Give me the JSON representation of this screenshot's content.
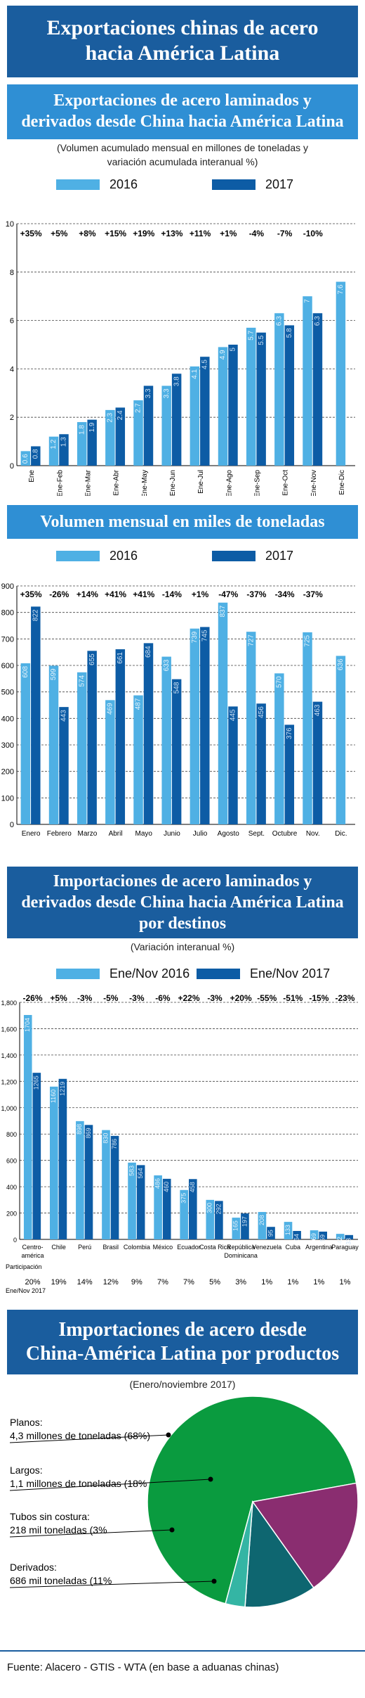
{
  "header": {
    "title_line1": "Exportaciones chinas de acero",
    "title_line2": "hacia América Latina"
  },
  "colors": {
    "c2016": "#4fb0e4",
    "c2017": "#0d5ca5",
    "grid": "#444444"
  },
  "section1": {
    "title_line1": "Exportaciones  de acero laminados y",
    "title_line2": "derivados desde China hacia América Latina",
    "subtitle_line1": "(Volumen acumulado mensual en millones de toneladas y",
    "subtitle_line2": "variación acumulada interanual %)",
    "legend_a": "2016",
    "legend_b": "2017"
  },
  "section2": {
    "title": "Volumen  mensual en miles de toneladas",
    "legend_a": "2016",
    "legend_b": "2017"
  },
  "section3": {
    "title_line1": "Importaciones  de acero laminados y",
    "title_line2": "derivados desde China hacia América Latina",
    "title_line3": "por destinos",
    "subtitle": "(Variación  interanual %)",
    "legend_a": "Ene/Nov 2016",
    "legend_b": "Ene/Nov 2017"
  },
  "section4": {
    "title_line1": "Importaciones  de acero desde",
    "title_line2": "China-América Latina por productos",
    "subtitle": "(Enero/noviembre 2017)"
  },
  "source": "Fuente: Alacero - GTIS - WTA (en base a aduanas chinas)",
  "chart_data": [
    {
      "type": "bar",
      "categories": [
        "Ene",
        "Ene-Feb",
        "Ene-Mar",
        "Ene-Abr",
        "Ene-May",
        "Ene-Jun",
        "Ene-Jul",
        "Ene-Ago",
        "Ene-Sep",
        "Ene-Oct",
        "Ene-Nov",
        "Ene-Dic"
      ],
      "series": [
        {
          "name": "2016",
          "values": [
            0.6,
            1.2,
            1.8,
            2.3,
            2.7,
            3.3,
            4.1,
            4.9,
            5.7,
            6.3,
            7.0,
            7.6
          ]
        },
        {
          "name": "2017",
          "values": [
            0.8,
            1.3,
            1.9,
            2.4,
            3.3,
            3.8,
            4.5,
            5.0,
            5.5,
            5.8,
            6.3,
            null
          ]
        }
      ],
      "annotations": [
        "+35%",
        "+5%",
        "+8%",
        "+15%",
        "+19%",
        "+13%",
        "+11%",
        "+1%",
        "-4%",
        "-7%",
        "-10%",
        ""
      ],
      "yticks": [
        "0",
        "2",
        "4",
        "6",
        "8",
        "10"
      ],
      "ylim": [
        0,
        10
      ],
      "grid": true
    },
    {
      "type": "bar",
      "categories": [
        "Enero",
        "Febrero",
        "Marzo",
        "Abril",
        "Mayo",
        "Junio",
        "Julio",
        "Agosto",
        "Sept.",
        "Octubre",
        "Nov.",
        "Dic."
      ],
      "series": [
        {
          "name": "2016",
          "values": [
            608,
            599,
            574,
            469,
            487,
            633,
            739,
            837,
            727,
            570,
            725,
            636
          ]
        },
        {
          "name": "2017",
          "values": [
            822,
            443,
            655,
            661,
            684,
            548,
            745,
            445,
            456,
            376,
            463,
            null
          ]
        }
      ],
      "annotations": [
        "+35%",
        "-26%",
        "+14%",
        "+41%",
        "+41%",
        "-14%",
        "+1%",
        "-47%",
        "-37%",
        "-34%",
        "-37%",
        ""
      ],
      "yticks": [
        "0",
        "100",
        "200",
        "300",
        "400",
        "500",
        "600",
        "700",
        "800",
        "900"
      ],
      "ylim": [
        0,
        900
      ],
      "grid": true
    },
    {
      "type": "bar",
      "categories": [
        [
          "Centro-",
          "américa"
        ],
        [
          "Chile"
        ],
        [
          "Perú"
        ],
        [
          "Brasil"
        ],
        [
          "Colombia"
        ],
        [
          "México"
        ],
        [
          "Ecuador"
        ],
        [
          "Costa Rica"
        ],
        [
          "República",
          "Dominicana"
        ],
        [
          "Venezuela"
        ],
        [
          "Cuba"
        ],
        [
          "Argentina"
        ],
        [
          "Paraguay"
        ]
      ],
      "series": [
        {
          "name": "Ene/Nov 2016",
          "values": [
            1704,
            1160,
            898,
            830,
            583,
            486,
            375,
            300,
            165,
            208,
            133,
            69,
            42
          ]
        },
        {
          "name": "Ene/Nov 2017",
          "values": [
            1265,
            1219,
            869,
            786,
            564,
            460,
            458,
            292,
            197,
            95,
            64,
            59,
            33
          ]
        }
      ],
      "annotations": [
        "-26%",
        "+5%",
        "-3%",
        "-5%",
        "-3%",
        "-6%",
        "+22%",
        "-3%",
        "+20%",
        "-55%",
        "-51%",
        "-15%",
        "-23%"
      ],
      "participation_label": [
        "Participación",
        "Ene/Nov 2017"
      ],
      "participation": [
        "20%",
        "19%",
        "14%",
        "12%",
        "9%",
        "7%",
        "7%",
        "5%",
        "3%",
        "1%",
        "1%",
        "1%",
        "1%"
      ],
      "yticks": [
        "0",
        "200",
        "400",
        "600",
        "800",
        "1,000",
        "1,200",
        "1,400",
        "1,600",
        "1,800"
      ],
      "ylim": [
        0,
        1800
      ],
      "grid": true
    },
    {
      "type": "pie",
      "slices": [
        {
          "label": "Planos:",
          "detail": "4,3 millones de toneladas (68%)",
          "value": 68,
          "color": "#0a9b3f"
        },
        {
          "label": "Largos:",
          "detail": "1,1 millones de toneladas (18%",
          "value": 18,
          "color": "#8a2d70"
        },
        {
          "label": "Derivados:",
          "detail": "686 mil toneladas (11%",
          "value": 11,
          "color": "#0e6670"
        },
        {
          "label": "Tubos sin costura:",
          "detail": "218 mil toneladas (3%",
          "value": 3,
          "color": "#34b5a4"
        }
      ]
    }
  ]
}
